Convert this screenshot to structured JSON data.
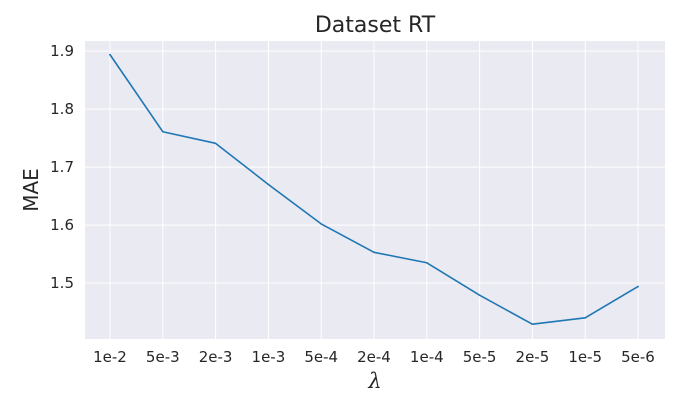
{
  "chart_data": {
    "type": "line",
    "title": "Dataset RT",
    "xlabel": "λ",
    "ylabel": "MAE",
    "categories": [
      "1e-2",
      "5e-3",
      "2e-3",
      "1e-3",
      "5e-4",
      "2e-4",
      "1e-4",
      "5e-5",
      "2e-5",
      "1e-5",
      "5e-6"
    ],
    "series": [
      {
        "values": [
          1.894,
          1.761,
          1.741,
          1.67,
          1.602,
          1.553,
          1.535,
          1.479,
          1.429,
          1.44,
          1.494
        ],
        "color": "#1f77b4"
      }
    ],
    "yticks": [
      "1.5",
      "1.6",
      "1.7",
      "1.8",
      "1.9"
    ],
    "ylim": [
      1.4035,
      1.9175
    ],
    "grid": true,
    "background": "#eaeaf2"
  }
}
